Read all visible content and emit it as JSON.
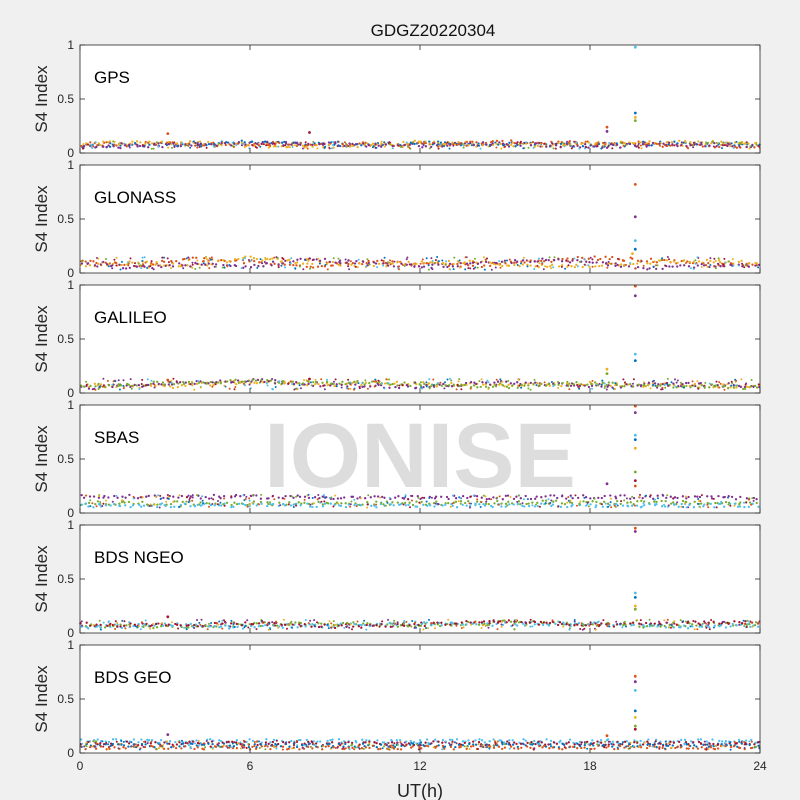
{
  "figure": {
    "title": "GDGZ20220304",
    "xlabel": "UT(h)",
    "watermark": "IONISE",
    "background_color": "#f0f0f0",
    "axes_color": "#ffffff"
  },
  "palette": [
    "#0072bd",
    "#d95319",
    "#edb120",
    "#7e2f8e",
    "#77ac30",
    "#4dbeee",
    "#a2142f"
  ],
  "chart_data": [
    {
      "type": "scatter",
      "panel_label": "GPS",
      "ylabel": "S4 Index",
      "xlim": [
        0,
        24
      ],
      "ylim": [
        0,
        1
      ],
      "xticks": [
        0,
        6,
        12,
        18,
        24
      ],
      "yticks": [
        0,
        0.5,
        1
      ],
      "ytick_labels": [
        "0",
        "0.5",
        "1"
      ],
      "grid": false,
      "baseline_s4": [
        0.04,
        0.12
      ],
      "series": [
        {
          "x": [
            0,
            3,
            6,
            9,
            12,
            15,
            18,
            21,
            24
          ],
          "y": [
            0.06,
            0.08,
            0.1,
            0.07,
            0.09,
            0.08,
            0.07,
            0.09,
            0.08
          ]
        },
        {
          "x": [
            0,
            3,
            6,
            9,
            12,
            15,
            18,
            21,
            24
          ],
          "y": [
            0.08,
            0.09,
            0.07,
            0.09,
            0.08,
            0.1,
            0.09,
            0.07,
            0.06
          ]
        },
        {
          "x": [
            0,
            3,
            6,
            9,
            12,
            15,
            18,
            21,
            24
          ],
          "y": [
            0.09,
            0.1,
            0.08,
            0.06,
            0.1,
            0.07,
            0.08,
            0.1,
            0.09
          ]
        },
        {
          "x": [
            0,
            3,
            6,
            9,
            12,
            15,
            18,
            21,
            24
          ],
          "y": [
            0.05,
            0.07,
            0.09,
            0.08,
            0.07,
            0.09,
            0.06,
            0.08,
            0.07
          ]
        }
      ],
      "spikes": [
        {
          "x": 18.6,
          "y": 0.24
        },
        {
          "x": 18.6,
          "y": 0.2
        },
        {
          "x": 19.6,
          "y": 0.98
        },
        {
          "x": 19.6,
          "y": 0.37
        },
        {
          "x": 19.6,
          "y": 0.33
        },
        {
          "x": 19.6,
          "y": 0.3
        },
        {
          "x": 8.1,
          "y": 0.19
        },
        {
          "x": 3.1,
          "y": 0.18
        }
      ]
    },
    {
      "type": "scatter",
      "panel_label": "GLONASS",
      "ylabel": "S4 Index",
      "xlim": [
        0,
        24
      ],
      "ylim": [
        0,
        1
      ],
      "xticks": [
        0,
        6,
        12,
        18,
        24
      ],
      "yticks": [
        0,
        0.5,
        1
      ],
      "ytick_labels": [
        "0",
        "0.5",
        "1"
      ],
      "grid": false,
      "baseline_s4": [
        0.03,
        0.17
      ],
      "series": [
        {
          "x": [
            0,
            2,
            4,
            6,
            8,
            10,
            12,
            14,
            16,
            18,
            20,
            22,
            24
          ],
          "y": [
            0.12,
            0.07,
            0.13,
            0.1,
            0.06,
            0.11,
            0.08,
            0.07,
            0.1,
            0.14,
            0.12,
            0.08,
            0.07
          ]
        },
        {
          "x": [
            0,
            2,
            4,
            6,
            8,
            10,
            12,
            14,
            16,
            18,
            20,
            22,
            24
          ],
          "y": [
            0.06,
            0.1,
            0.07,
            0.14,
            0.1,
            0.07,
            0.09,
            0.1,
            0.06,
            0.07,
            0.1,
            0.11,
            0.09
          ]
        },
        {
          "x": [
            0,
            2,
            4,
            6,
            8,
            10,
            12,
            14,
            16,
            18,
            20,
            22,
            24
          ],
          "y": [
            0.08,
            0.05,
            0.08,
            0.06,
            0.13,
            0.09,
            0.06,
            0.08,
            0.12,
            0.1,
            0.05,
            0.07,
            0.06
          ]
        }
      ],
      "spikes": [
        {
          "x": 19.6,
          "y": 0.82
        },
        {
          "x": 19.6,
          "y": 0.52
        },
        {
          "x": 19.6,
          "y": 0.3
        },
        {
          "x": 19.6,
          "y": 0.22
        },
        {
          "x": 19.5,
          "y": 0.18
        }
      ]
    },
    {
      "type": "scatter",
      "panel_label": "GALILEO",
      "ylabel": "S4 Index",
      "xlim": [
        0,
        24
      ],
      "ylim": [
        0,
        1
      ],
      "xticks": [
        0,
        6,
        12,
        18,
        24
      ],
      "yticks": [
        0,
        0.5,
        1
      ],
      "ytick_labels": [
        "0",
        "0.5",
        "1"
      ],
      "grid": false,
      "baseline_s4": [
        0.03,
        0.15
      ],
      "series": [
        {
          "x": [
            0,
            3,
            6,
            9,
            12,
            15,
            18,
            21,
            24
          ],
          "y": [
            0.07,
            0.06,
            0.1,
            0.08,
            0.09,
            0.07,
            0.08,
            0.07,
            0.06
          ]
        },
        {
          "x": [
            0,
            3,
            6,
            9,
            12,
            15,
            18,
            21,
            24
          ],
          "y": [
            0.05,
            0.08,
            0.12,
            0.07,
            0.06,
            0.1,
            0.06,
            0.08,
            0.07
          ]
        },
        {
          "x": [
            0,
            3,
            6,
            9,
            12,
            15,
            18,
            21,
            24
          ],
          "y": [
            0.06,
            0.09,
            0.11,
            0.1,
            0.08,
            0.06,
            0.09,
            0.06,
            0.05
          ]
        }
      ],
      "spikes": [
        {
          "x": 19.6,
          "y": 0.99
        },
        {
          "x": 19.6,
          "y": 0.9
        },
        {
          "x": 19.6,
          "y": 0.36
        },
        {
          "x": 19.6,
          "y": 0.3
        },
        {
          "x": 18.6,
          "y": 0.22
        },
        {
          "x": 18.6,
          "y": 0.18
        },
        {
          "x": 8.1,
          "y": 0.13
        },
        {
          "x": 3.1,
          "y": 0.12
        }
      ]
    },
    {
      "type": "scatter",
      "panel_label": "SBAS",
      "ylabel": "S4 Index",
      "xlim": [
        0,
        24
      ],
      "ylim": [
        0,
        1
      ],
      "xticks": [
        0,
        6,
        12,
        18,
        24
      ],
      "yticks": [
        0,
        0.5,
        1
      ],
      "ytick_labels": [
        "0",
        "0.5",
        "1"
      ],
      "grid": false,
      "baseline_s4": [
        0.05,
        0.19
      ],
      "series": [
        {
          "x": [
            0,
            6,
            12,
            18,
            24
          ],
          "y": [
            0.15,
            0.15,
            0.14,
            0.15,
            0.14
          ]
        },
        {
          "x": [
            0,
            6,
            12,
            18,
            24
          ],
          "y": [
            0.09,
            0.09,
            0.09,
            0.1,
            0.09
          ]
        },
        {
          "x": [
            0,
            6,
            12,
            18,
            24
          ],
          "y": [
            0.07,
            0.07,
            0.07,
            0.07,
            0.07
          ]
        }
      ],
      "spikes": [
        {
          "x": 19.6,
          "y": 0.99
        },
        {
          "x": 19.6,
          "y": 0.93
        },
        {
          "x": 19.6,
          "y": 0.72
        },
        {
          "x": 19.6,
          "y": 0.68
        },
        {
          "x": 19.6,
          "y": 0.6
        },
        {
          "x": 19.6,
          "y": 0.38
        },
        {
          "x": 19.6,
          "y": 0.3
        },
        {
          "x": 19.6,
          "y": 0.25
        },
        {
          "x": 18.6,
          "y": 0.27
        }
      ]
    },
    {
      "type": "scatter",
      "panel_label": "BDS NGEO",
      "ylabel": "S4 Index",
      "xlim": [
        0,
        24
      ],
      "ylim": [
        0,
        1
      ],
      "xticks": [
        0,
        6,
        12,
        18,
        24
      ],
      "yticks": [
        0,
        0.5,
        1
      ],
      "ytick_labels": [
        "0",
        "0.5",
        "1"
      ],
      "grid": false,
      "baseline_s4": [
        0.03,
        0.14
      ],
      "series": [
        {
          "x": [
            0,
            3,
            6,
            9,
            12,
            15,
            18,
            21,
            24
          ],
          "y": [
            0.07,
            0.06,
            0.08,
            0.09,
            0.07,
            0.1,
            0.08,
            0.07,
            0.09
          ]
        },
        {
          "x": [
            0,
            3,
            6,
            9,
            12,
            15,
            18,
            21,
            24
          ],
          "y": [
            0.05,
            0.08,
            0.06,
            0.07,
            0.09,
            0.08,
            0.09,
            0.06,
            0.07
          ]
        },
        {
          "x": [
            0,
            3,
            6,
            9,
            12,
            15,
            18,
            21,
            24
          ],
          "y": [
            0.08,
            0.07,
            0.09,
            0.06,
            0.08,
            0.11,
            0.07,
            0.09,
            0.1
          ]
        }
      ],
      "spikes": [
        {
          "x": 19.6,
          "y": 0.97
        },
        {
          "x": 19.6,
          "y": 0.94
        },
        {
          "x": 19.6,
          "y": 0.37
        },
        {
          "x": 19.6,
          "y": 0.33
        },
        {
          "x": 19.6,
          "y": 0.25
        },
        {
          "x": 19.6,
          "y": 0.22
        },
        {
          "x": 3.1,
          "y": 0.15
        }
      ]
    },
    {
      "type": "scatter",
      "panel_label": "BDS GEO",
      "ylabel": "S4 Index",
      "xlim": [
        0,
        24
      ],
      "ylim": [
        0,
        1
      ],
      "xticks": [
        0,
        6,
        12,
        18,
        24
      ],
      "yticks": [
        0,
        0.5,
        1
      ],
      "ytick_labels": [
        "0",
        "0.5",
        "1"
      ],
      "grid": false,
      "baseline_s4": [
        0.03,
        0.13
      ],
      "series": [
        {
          "x": [
            0,
            6,
            12,
            18,
            24
          ],
          "y": [
            0.11,
            0.11,
            0.11,
            0.11,
            0.11
          ]
        },
        {
          "x": [
            0,
            6,
            12,
            18,
            24
          ],
          "y": [
            0.09,
            0.09,
            0.09,
            0.09,
            0.09
          ]
        },
        {
          "x": [
            0,
            6,
            12,
            18,
            24
          ],
          "y": [
            0.07,
            0.07,
            0.07,
            0.07,
            0.07
          ]
        },
        {
          "x": [
            0,
            6,
            12,
            18,
            24
          ],
          "y": [
            0.05,
            0.05,
            0.05,
            0.05,
            0.05
          ]
        }
      ],
      "spikes": [
        {
          "x": 19.6,
          "y": 0.71
        },
        {
          "x": 19.6,
          "y": 0.66
        },
        {
          "x": 19.6,
          "y": 0.58
        },
        {
          "x": 19.6,
          "y": 0.39
        },
        {
          "x": 19.6,
          "y": 0.33
        },
        {
          "x": 19.6,
          "y": 0.25
        },
        {
          "x": 19.6,
          "y": 0.22
        },
        {
          "x": 18.6,
          "y": 0.16
        },
        {
          "x": 3.1,
          "y": 0.17
        }
      ]
    }
  ]
}
